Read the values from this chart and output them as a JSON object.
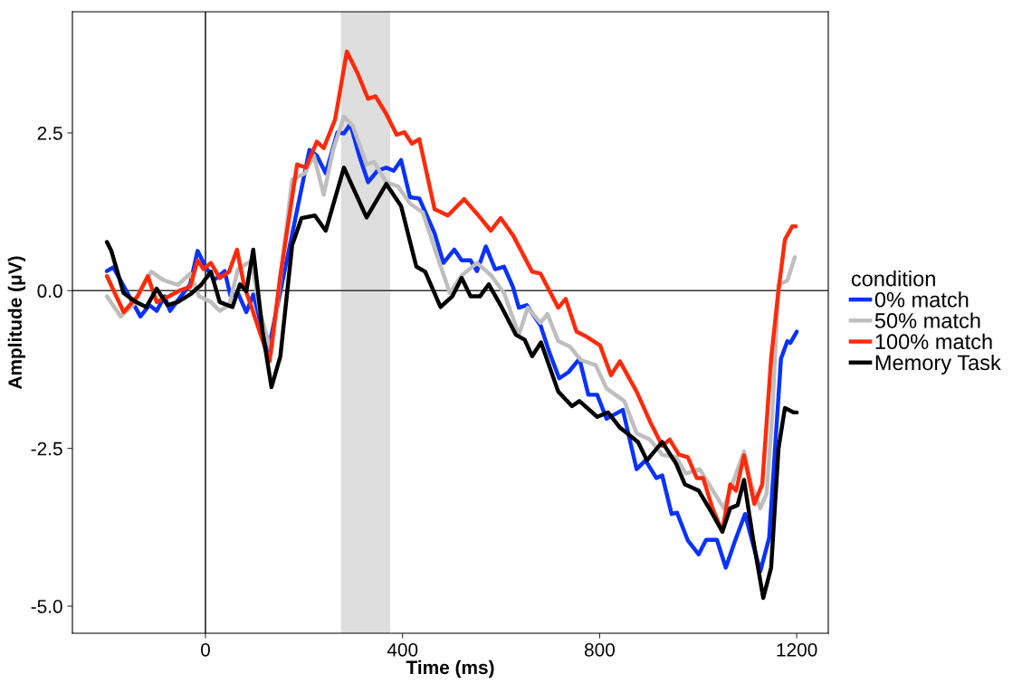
{
  "chart_data": {
    "type": "line",
    "xlabel": "Time (ms)",
    "ylabel": "Amplitude (μV)",
    "legend_title": "condition",
    "legend": "right",
    "grid": false,
    "line_style": "solid",
    "marker": "none",
    "xlim": [
      -270,
      1264
    ],
    "ylim": [
      -5.43,
      4.42
    ],
    "xticks": [
      0,
      400,
      800,
      1200
    ],
    "yticks": [
      {
        "value": -5,
        "label": "-5.0"
      },
      -2.5,
      {
        "value": 0,
        "label": "0.0"
      },
      2.5
    ],
    "ref_lines": [
      {
        "axis": "x",
        "value": 0,
        "color": "#000000"
      },
      {
        "axis": "y",
        "value": 0,
        "color": "#333333"
      }
    ],
    "bands": [
      {
        "axis": "x",
        "from": 275,
        "to": 375,
        "color": "#dedede"
      }
    ],
    "series": [
      {
        "name": "0% match",
        "color": "#0a32ff",
        "x": [
          -200,
          -187,
          -132,
          -114,
          -99,
          -83,
          -72,
          -50,
          -31,
          -16,
          0,
          18,
          39,
          51,
          66,
          83,
          97,
          128,
          134,
          211,
          226,
          244,
          268,
          281,
          294,
          312,
          330,
          349,
          367,
          382,
          397,
          415,
          434,
          465,
          483,
          505,
          520,
          538,
          551,
          569,
          588,
          606,
          624,
          636,
          652,
          680,
          698,
          718,
          737,
          759,
          777,
          795,
          814,
          847,
          875,
          893,
          915,
          927,
          946,
          957,
          979,
          1001,
          1016,
          1038,
          1056,
          1075,
          1095,
          1126,
          1144,
          1168,
          1181,
          1187,
          1200
        ],
        "values": [
          0.31,
          0.37,
          -0.41,
          -0.23,
          -0.32,
          -0.09,
          -0.32,
          -0.09,
          0.1,
          0.63,
          0.38,
          0.17,
          0.31,
          -0.09,
          -0.04,
          -0.34,
          -0.06,
          -0.98,
          -0.7,
          2.23,
          2.14,
          1.86,
          2.51,
          2.49,
          2.64,
          2.14,
          1.72,
          1.9,
          1.95,
          1.9,
          2.07,
          1.48,
          1.46,
          0.91,
          0.44,
          0.65,
          0.48,
          0.48,
          0.31,
          0.7,
          0.34,
          0.38,
          0.06,
          -0.27,
          -0.23,
          -0.55,
          -0.98,
          -1.39,
          -1.29,
          -1.08,
          -1.65,
          -1.65,
          -2.03,
          -1.89,
          -2.83,
          -2.69,
          -2.97,
          -2.93,
          -3.54,
          -3.52,
          -3.96,
          -4.18,
          -3.95,
          -3.95,
          -4.39,
          -3.96,
          -3.54,
          -4.45,
          -3.92,
          -1.08,
          -0.8,
          -0.83,
          -0.65
        ]
      },
      {
        "name": "50% match",
        "color": "#bebebe",
        "x": [
          -200,
          -172,
          -147,
          -110,
          -86,
          -56,
          -31,
          -13,
          11,
          29,
          48,
          66,
          94,
          110,
          134,
          176,
          202,
          220,
          240,
          259,
          281,
          299,
          327,
          342,
          367,
          391,
          415,
          441,
          465,
          496,
          520,
          551,
          580,
          606,
          636,
          654,
          680,
          694,
          716,
          740,
          762,
          792,
          814,
          850,
          875,
          902,
          927,
          955,
          975,
          1003,
          1025,
          1052,
          1071,
          1093,
          1108,
          1126,
          1139,
          1150,
          1163,
          1181,
          1196
        ],
        "values": [
          -0.09,
          -0.41,
          -0.23,
          0.3,
          0.17,
          0.09,
          0.27,
          -0.09,
          -0.18,
          -0.32,
          -0.23,
          0.34,
          0.48,
          -0.32,
          -0.98,
          1.76,
          1.86,
          2.14,
          1.52,
          2.23,
          2.76,
          2.61,
          2.0,
          2.04,
          1.72,
          1.65,
          1.38,
          1.24,
          0.67,
          -0.04,
          0.24,
          0.44,
          0.24,
          -0.04,
          -0.7,
          -0.27,
          -0.51,
          -0.37,
          -0.8,
          -0.89,
          -1.1,
          -1.18,
          -1.55,
          -1.75,
          -2.26,
          -2.36,
          -2.6,
          -2.64,
          -2.9,
          -2.83,
          -3.11,
          -3.45,
          -3.03,
          -2.55,
          -3.07,
          -3.45,
          -3.21,
          -2.0,
          0.09,
          0.16,
          0.53
        ]
      },
      {
        "name": "100% match",
        "color": "#ff2a0a",
        "x": [
          -200,
          -166,
          -138,
          -117,
          -99,
          -74,
          -50,
          -31,
          -16,
          -4,
          11,
          29,
          48,
          64,
          79,
          92,
          130,
          152,
          186,
          204,
          226,
          240,
          263,
          287,
          309,
          330,
          345,
          367,
          388,
          404,
          419,
          434,
          465,
          492,
          525,
          551,
          579,
          599,
          624,
          663,
          680,
          716,
          731,
          753,
          771,
          801,
          823,
          841,
          875,
          902,
          927,
          942,
          961,
          979,
          997,
          1010,
          1029,
          1049,
          1065,
          1077,
          1093,
          1114,
          1130,
          1148,
          1163,
          1176,
          1191,
          1198
        ],
        "values": [
          0.23,
          -0.34,
          -0.09,
          0.23,
          -0.18,
          -0.09,
          0.01,
          0.06,
          0.48,
          0.34,
          0.44,
          0.2,
          0.3,
          0.65,
          0.06,
          -0.23,
          -1.12,
          0.24,
          2.0,
          1.95,
          2.36,
          2.26,
          2.71,
          3.79,
          3.44,
          3.04,
          3.08,
          2.8,
          2.47,
          2.51,
          2.33,
          2.4,
          1.29,
          1.19,
          1.45,
          1.22,
          0.95,
          1.15,
          0.88,
          0.3,
          0.27,
          -0.27,
          -0.13,
          -0.65,
          -0.72,
          -0.87,
          -1.34,
          -1.12,
          -1.6,
          -2.07,
          -2.46,
          -2.36,
          -2.6,
          -2.64,
          -2.97,
          -2.97,
          -3.45,
          -3.82,
          -3.07,
          -3.17,
          -2.61,
          -3.38,
          -3.07,
          -1.08,
          0.01,
          0.81,
          1.02,
          1.02
        ]
      },
      {
        "name": "Memory Task",
        "color": "#000000",
        "x": [
          -200,
          -191,
          -166,
          -141,
          -120,
          -99,
          -77,
          -56,
          -31,
          -9,
          11,
          29,
          55,
          70,
          83,
          97,
          116,
          134,
          152,
          176,
          195,
          222,
          244,
          281,
          327,
          367,
          397,
          428,
          446,
          477,
          501,
          520,
          538,
          557,
          575,
          599,
          630,
          648,
          663,
          681,
          716,
          744,
          759,
          795,
          817,
          841,
          856,
          878,
          896,
          927,
          955,
          973,
          1001,
          1029,
          1049,
          1065,
          1080,
          1093,
          1111,
          1132,
          1148,
          1163,
          1176,
          1194,
          1200
        ],
        "values": [
          0.77,
          0.63,
          -0.04,
          -0.18,
          -0.26,
          0.03,
          -0.23,
          -0.18,
          -0.06,
          0.09,
          0.3,
          -0.18,
          -0.26,
          0.1,
          -0.01,
          0.65,
          -0.65,
          -1.53,
          -1.04,
          0.72,
          1.15,
          1.19,
          0.95,
          1.95,
          1.16,
          1.69,
          1.34,
          0.38,
          0.3,
          -0.26,
          -0.09,
          0.2,
          -0.09,
          -0.09,
          0.1,
          -0.23,
          -0.7,
          -0.78,
          -1.04,
          -0.82,
          -1.6,
          -1.83,
          -1.75,
          -2.0,
          -1.93,
          -2.17,
          -2.26,
          -2.4,
          -2.69,
          -2.4,
          -2.74,
          -3.07,
          -3.17,
          -3.54,
          -3.82,
          -3.45,
          -3.4,
          -3.0,
          -3.92,
          -4.87,
          -4.39,
          -2.5,
          -1.86,
          -1.93,
          -1.93
        ]
      }
    ]
  }
}
